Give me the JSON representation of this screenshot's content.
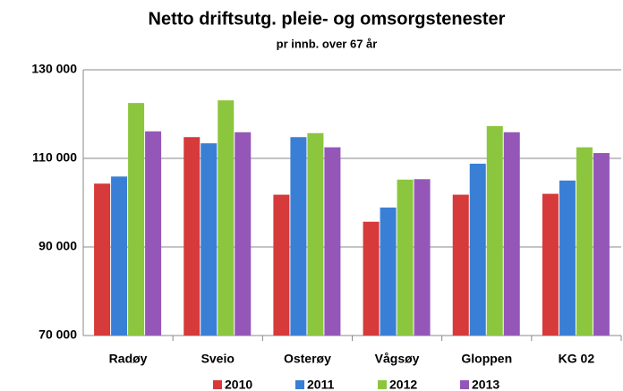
{
  "chart_data": {
    "type": "bar",
    "title": "Netto driftsutg. pleie- og omsorgstenester",
    "subtitle": "pr innb. over 67 år",
    "categories": [
      "Radøy",
      "Sveio",
      "Osterøy",
      "Vågsøy",
      "Gloppen",
      "KG 02"
    ],
    "series": [
      {
        "name": "2010",
        "color": "#d63a3a",
        "values": [
          104300,
          114800,
          101800,
          95700,
          101800,
          102000
        ]
      },
      {
        "name": "2011",
        "color": "#3a7fd6",
        "values": [
          105900,
          113400,
          114800,
          98900,
          108800,
          105000
        ]
      },
      {
        "name": "2012",
        "color": "#8cc63e",
        "values": [
          122500,
          123100,
          115700,
          105200,
          117300,
          112500
        ]
      },
      {
        "name": "2013",
        "color": "#9457b8",
        "values": [
          116100,
          115900,
          112500,
          105300,
          115900,
          111200
        ]
      }
    ],
    "ylim": [
      70000,
      130000
    ],
    "yticks": [
      {
        "value": 70000,
        "label": "70 000"
      },
      {
        "value": 90000,
        "label": "90 000"
      },
      {
        "value": 110000,
        "label": "110 000"
      },
      {
        "value": 130000,
        "label": "130 000"
      }
    ],
    "grid": true,
    "legend": "bottom"
  }
}
